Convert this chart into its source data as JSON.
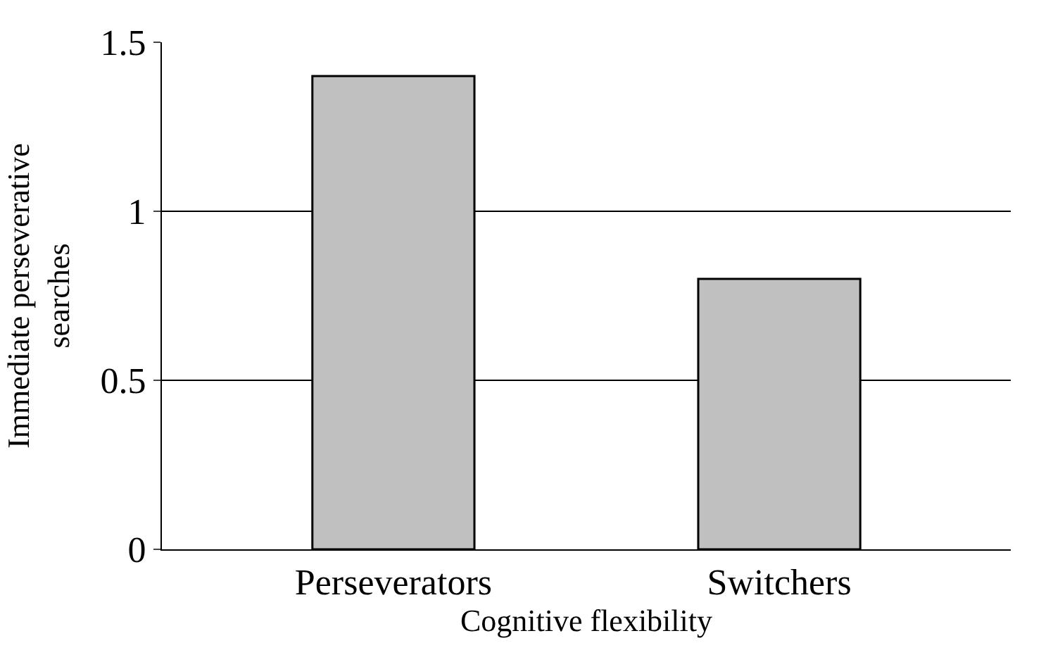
{
  "chart_data": {
    "type": "bar",
    "xlabel": "Cognitive flexibility",
    "ylabel": "Immediate perseverative\nsearches",
    "categories": [
      "Perseverators",
      "Switchers"
    ],
    "values": [
      1.4,
      0.8
    ],
    "color": "#c0c0c0",
    "ylim": [
      0,
      1.5
    ],
    "yticks": [
      0,
      0.5,
      1,
      1.5
    ],
    "grid": "y"
  }
}
